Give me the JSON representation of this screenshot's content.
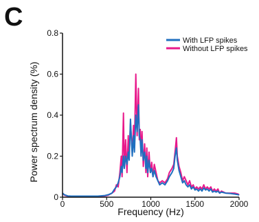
{
  "panel_label": "C",
  "chart_data": {
    "type": "line",
    "title": "",
    "xlabel": "Frequency (Hz)",
    "ylabel": "Power spectrum density (%)",
    "xlim": [
      0,
      2000
    ],
    "ylim": [
      0,
      0.8
    ],
    "xticks": [
      0,
      500,
      1000,
      1500,
      2000
    ],
    "xtick_labels": [
      "0",
      "500",
      "1000",
      "1500",
      "2000"
    ],
    "yticks": [
      0,
      0.2,
      0.4,
      0.6,
      0.8
    ],
    "ytick_labels": [
      "0",
      "0.2",
      "0.4",
      "0.6",
      "0.8"
    ],
    "grid": false,
    "legend_position": "top-right",
    "series": [
      {
        "name": "Without LFP spikes",
        "color": "#e8198b",
        "points": [
          [
            0,
            0.02
          ],
          [
            20,
            0.01
          ],
          [
            60,
            0.005
          ],
          [
            100,
            0.004
          ],
          [
            200,
            0.004
          ],
          [
            300,
            0.004
          ],
          [
            400,
            0.004
          ],
          [
            480,
            0.006
          ],
          [
            520,
            0.01
          ],
          [
            560,
            0.02
          ],
          [
            590,
            0.03
          ],
          [
            610,
            0.06
          ],
          [
            630,
            0.05
          ],
          [
            650,
            0.12
          ],
          [
            665,
            0.2
          ],
          [
            675,
            0.1
          ],
          [
            690,
            0.41
          ],
          [
            700,
            0.15
          ],
          [
            715,
            0.28
          ],
          [
            730,
            0.12
          ],
          [
            745,
            0.3
          ],
          [
            755,
            0.2
          ],
          [
            770,
            0.36
          ],
          [
            790,
            0.22
          ],
          [
            805,
            0.35
          ],
          [
            815,
            0.25
          ],
          [
            830,
            0.6
          ],
          [
            845,
            0.3
          ],
          [
            860,
            0.53
          ],
          [
            870,
            0.28
          ],
          [
            880,
            0.33
          ],
          [
            890,
            0.2
          ],
          [
            900,
            0.32
          ],
          [
            915,
            0.15
          ],
          [
            930,
            0.26
          ],
          [
            945,
            0.12
          ],
          [
            955,
            0.24
          ],
          [
            965,
            0.1
          ],
          [
            980,
            0.22
          ],
          [
            995,
            0.12
          ],
          [
            1010,
            0.17
          ],
          [
            1025,
            0.1
          ],
          [
            1040,
            0.16
          ],
          [
            1060,
            0.12
          ],
          [
            1080,
            0.08
          ],
          [
            1100,
            0.07
          ],
          [
            1130,
            0.08
          ],
          [
            1160,
            0.07
          ],
          [
            1190,
            0.09
          ],
          [
            1210,
            0.12
          ],
          [
            1240,
            0.14
          ],
          [
            1260,
            0.16
          ],
          [
            1275,
            0.22
          ],
          [
            1290,
            0.29
          ],
          [
            1300,
            0.2
          ],
          [
            1320,
            0.15
          ],
          [
            1340,
            0.12
          ],
          [
            1360,
            0.08
          ],
          [
            1380,
            0.1
          ],
          [
            1400,
            0.08
          ],
          [
            1420,
            0.06
          ],
          [
            1440,
            0.08
          ],
          [
            1460,
            0.05
          ],
          [
            1480,
            0.06
          ],
          [
            1500,
            0.04
          ],
          [
            1520,
            0.05
          ],
          [
            1540,
            0.04
          ],
          [
            1560,
            0.05
          ],
          [
            1580,
            0.04
          ],
          [
            1600,
            0.06
          ],
          [
            1620,
            0.04
          ],
          [
            1640,
            0.05
          ],
          [
            1660,
            0.04
          ],
          [
            1680,
            0.05
          ],
          [
            1700,
            0.03
          ],
          [
            1720,
            0.04
          ],
          [
            1740,
            0.03
          ],
          [
            1760,
            0.04
          ],
          [
            1780,
            0.02
          ],
          [
            1800,
            0.03
          ],
          [
            1850,
            0.02
          ],
          [
            1900,
            0.02
          ],
          [
            1950,
            0.02
          ],
          [
            1990,
            0.015
          ],
          [
            2000,
            0.01
          ]
        ]
      },
      {
        "name": "With LFP spikes",
        "color": "#1f6fbf",
        "points": [
          [
            0,
            0.02
          ],
          [
            20,
            0.012
          ],
          [
            60,
            0.006
          ],
          [
            100,
            0.005
          ],
          [
            200,
            0.005
          ],
          [
            300,
            0.005
          ],
          [
            400,
            0.005
          ],
          [
            480,
            0.008
          ],
          [
            520,
            0.012
          ],
          [
            560,
            0.02
          ],
          [
            590,
            0.04
          ],
          [
            610,
            0.05
          ],
          [
            630,
            0.07
          ],
          [
            650,
            0.1
          ],
          [
            665,
            0.15
          ],
          [
            675,
            0.12
          ],
          [
            690,
            0.2
          ],
          [
            700,
            0.14
          ],
          [
            715,
            0.2
          ],
          [
            730,
            0.16
          ],
          [
            745,
            0.22
          ],
          [
            755,
            0.18
          ],
          [
            770,
            0.38
          ],
          [
            790,
            0.2
          ],
          [
            805,
            0.3
          ],
          [
            815,
            0.22
          ],
          [
            830,
            0.4
          ],
          [
            845,
            0.32
          ],
          [
            860,
            0.45
          ],
          [
            870,
            0.3
          ],
          [
            880,
            0.28
          ],
          [
            890,
            0.2
          ],
          [
            900,
            0.28
          ],
          [
            915,
            0.18
          ],
          [
            930,
            0.22
          ],
          [
            945,
            0.14
          ],
          [
            955,
            0.2
          ],
          [
            965,
            0.12
          ],
          [
            980,
            0.18
          ],
          [
            995,
            0.12
          ],
          [
            1010,
            0.14
          ],
          [
            1025,
            0.1
          ],
          [
            1040,
            0.13
          ],
          [
            1060,
            0.1
          ],
          [
            1080,
            0.08
          ],
          [
            1100,
            0.06
          ],
          [
            1130,
            0.07
          ],
          [
            1160,
            0.06
          ],
          [
            1190,
            0.08
          ],
          [
            1210,
            0.1
          ],
          [
            1240,
            0.12
          ],
          [
            1260,
            0.14
          ],
          [
            1275,
            0.2
          ],
          [
            1290,
            0.24
          ],
          [
            1300,
            0.18
          ],
          [
            1320,
            0.13
          ],
          [
            1340,
            0.1
          ],
          [
            1360,
            0.07
          ],
          [
            1380,
            0.08
          ],
          [
            1400,
            0.06
          ],
          [
            1420,
            0.05
          ],
          [
            1440,
            0.06
          ],
          [
            1460,
            0.04
          ],
          [
            1480,
            0.05
          ],
          [
            1500,
            0.035
          ],
          [
            1520,
            0.04
          ],
          [
            1540,
            0.03
          ],
          [
            1560,
            0.04
          ],
          [
            1580,
            0.03
          ],
          [
            1600,
            0.045
          ],
          [
            1620,
            0.035
          ],
          [
            1640,
            0.04
          ],
          [
            1660,
            0.03
          ],
          [
            1680,
            0.04
          ],
          [
            1700,
            0.025
          ],
          [
            1720,
            0.03
          ],
          [
            1740,
            0.025
          ],
          [
            1760,
            0.03
          ],
          [
            1780,
            0.02
          ],
          [
            1800,
            0.025
          ],
          [
            1850,
            0.02
          ],
          [
            1900,
            0.018
          ],
          [
            1950,
            0.015
          ],
          [
            1990,
            0.012
          ],
          [
            2000,
            0.01
          ]
        ]
      }
    ]
  }
}
